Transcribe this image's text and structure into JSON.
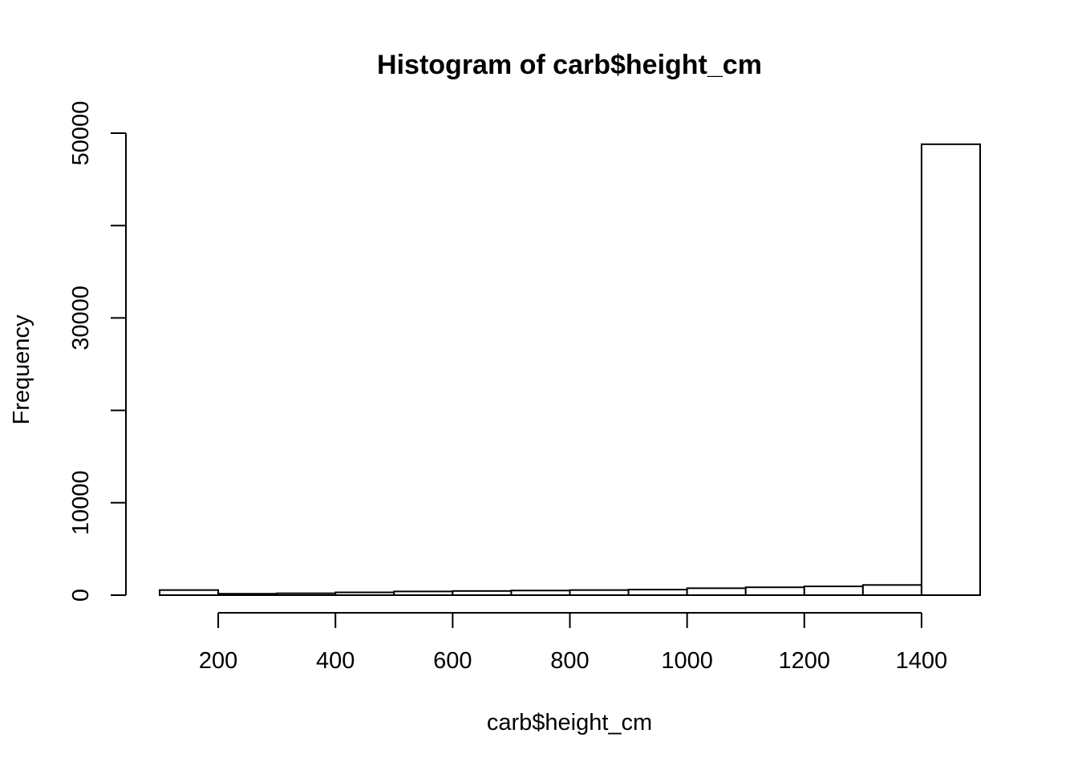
{
  "chart_data": {
    "type": "bar",
    "title": "Histogram of carb$height_cm",
    "xlabel": "carb$height_cm",
    "ylabel": "Frequency",
    "bins": [
      {
        "x0": 100,
        "x1": 200,
        "count": 550
      },
      {
        "x0": 200,
        "x1": 300,
        "count": 150
      },
      {
        "x0": 300,
        "x1": 400,
        "count": 200
      },
      {
        "x0": 400,
        "x1": 500,
        "count": 300
      },
      {
        "x0": 500,
        "x1": 600,
        "count": 400
      },
      {
        "x0": 600,
        "x1": 700,
        "count": 450
      },
      {
        "x0": 700,
        "x1": 800,
        "count": 500
      },
      {
        "x0": 800,
        "x1": 900,
        "count": 550
      },
      {
        "x0": 900,
        "x1": 1000,
        "count": 600
      },
      {
        "x0": 1000,
        "x1": 1100,
        "count": 750
      },
      {
        "x0": 1100,
        "x1": 1200,
        "count": 850
      },
      {
        "x0": 1200,
        "x1": 1300,
        "count": 950
      },
      {
        "x0": 1300,
        "x1": 1400,
        "count": 1100
      },
      {
        "x0": 1400,
        "x1": 1500,
        "count": 48800
      }
    ],
    "x_ticks": [
      200,
      400,
      600,
      800,
      1000,
      1200,
      1400
    ],
    "x_tick_labels": [
      "200",
      "400",
      "600",
      "800",
      "1000",
      "1200",
      "1400"
    ],
    "y_ticks": [
      0,
      10000,
      20000,
      30000,
      40000,
      50000
    ],
    "y_tick_labels": [
      "0",
      "10000",
      "",
      "30000",
      "",
      "50000"
    ],
    "xlim": [
      100,
      1500
    ],
    "ylim": [
      0,
      50000
    ],
    "grid": false,
    "legend": "none"
  }
}
